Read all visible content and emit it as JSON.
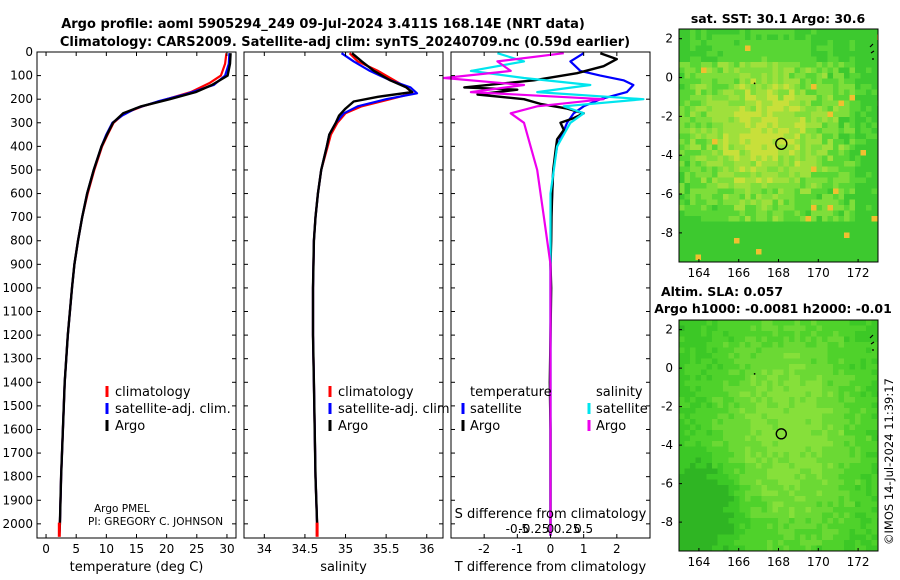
{
  "header": {
    "line1": "Argo profile: aoml 5905294_249 09-Jul-2024 3.411S 168.14E (NRT data)",
    "line2": "Climatology: CARS2009. Satellite-adj clim: synTS_20240709.nc (0.59d earlier)"
  },
  "pi": {
    "line1": "Argo PMEL",
    "line2": "PI: GREGORY C. JOHNSON"
  },
  "maps": {
    "sst_title": "sat. SST: 30.1 Argo: 30.6",
    "sla_title1": "Altim. SLA: 0.057",
    "sla_title2": "Argo h1000: -0.0081 h2000: -0.01"
  },
  "credit": "©IMOS 14-Jul-2024 11:39:17",
  "colors": {
    "argo": "#000000",
    "climatology": "#ff0000",
    "satellite_clim": "#0000ff",
    "t_satellite": "#0000ff",
    "s_satellite": "#00e5ee",
    "s_argo": "#ee00ee",
    "sst_base": "#7ee23a",
    "sla_base": "#44d622"
  },
  "chart_data": [
    {
      "type": "line",
      "id": "temperature",
      "xlabel": "temperature (deg C)",
      "ylabel": "",
      "xlim": [
        -1.5,
        31.5
      ],
      "ylim": [
        2060,
        0
      ],
      "xticks": [
        0,
        5,
        10,
        15,
        20,
        25,
        30
      ],
      "xticklabels": [
        "0",
        "5",
        "10",
        "15",
        "20",
        "25",
        "30"
      ],
      "yticks": [
        0,
        100,
        200,
        300,
        400,
        500,
        600,
        700,
        800,
        900,
        1000,
        1100,
        1200,
        1300,
        1400,
        1500,
        1600,
        1700,
        1800,
        1900,
        2000
      ],
      "yticklabels": [
        "0",
        "100",
        "200",
        "300",
        "400",
        "500",
        "600",
        "700",
        "800",
        "900",
        "1000",
        "1100",
        "1200",
        "1300",
        "1400",
        "1500",
        "1600",
        "1700",
        "1800",
        "1900",
        "2000"
      ],
      "legend": {
        "entries": [
          "climatology",
          "satellite-adj. clim.",
          "Argo"
        ],
        "placement": "lower-right"
      },
      "series": [
        {
          "name": "climatology",
          "depth": [
            5,
            50,
            100,
            130,
            170,
            200,
            230,
            260,
            300,
            350,
            400,
            500,
            600,
            700,
            800,
            900,
            1000,
            1200,
            1400,
            1600,
            1800,
            2000,
            2050
          ],
          "values": [
            29.9,
            29.7,
            29.0,
            27.2,
            24.0,
            20.0,
            16.0,
            13.0,
            11.2,
            10.2,
            9.3,
            8.0,
            6.9,
            6.0,
            5.3,
            4.7,
            4.3,
            3.6,
            3.1,
            2.8,
            2.5,
            2.3,
            2.2
          ]
        },
        {
          "name": "satellite-adj. clim.",
          "depth": [
            5,
            50,
            100,
            140,
            180,
            210,
            240,
            270,
            300,
            350,
            400,
            500,
            600,
            700,
            800,
            900,
            1000,
            1200,
            1400,
            1600,
            1800,
            2000,
            2050
          ],
          "values": [
            30.4,
            30.3,
            29.7,
            27.8,
            23.0,
            18.5,
            14.8,
            12.6,
            11.0,
            10.0,
            9.2,
            7.9,
            6.8,
            6.0,
            5.3,
            4.7,
            4.3,
            3.6,
            3.1,
            2.8,
            2.5,
            2.3,
            2.2
          ]
        },
        {
          "name": "Argo",
          "depth": [
            5,
            50,
            100,
            140,
            170,
            200,
            230,
            260,
            300,
            350,
            400,
            500,
            600,
            700,
            800,
            900,
            1000,
            1200,
            1400,
            1600,
            1800,
            2000,
            2050
          ],
          "values": [
            30.6,
            30.5,
            30.1,
            27.5,
            24.8,
            20.5,
            15.8,
            12.8,
            11.1,
            10.1,
            9.2,
            7.9,
            6.8,
            6.0,
            5.3,
            4.7,
            4.3,
            3.6,
            3.1,
            2.8,
            2.5,
            2.3,
            2.2
          ]
        }
      ]
    },
    {
      "type": "line",
      "id": "salinity",
      "xlabel": "salinity",
      "ylabel": "",
      "xlim": [
        33.75,
        36.2
      ],
      "ylim": [
        2060,
        0
      ],
      "xticks": [
        34,
        34.5,
        35,
        35.5,
        36
      ],
      "xticklabels": [
        "34",
        "34.5",
        "35",
        "35.5",
        "36"
      ],
      "legend": {
        "entries": [
          "climatology",
          "satellite-adj. clim.",
          "Argo"
        ],
        "placement": "lower-right"
      },
      "series": [
        {
          "name": "climatology",
          "depth": [
            5,
            40,
            80,
            120,
            150,
            175,
            200,
            230,
            260,
            300,
            350,
            400,
            500,
            600,
            700,
            800,
            1000,
            1200,
            1400,
            1600,
            1800,
            2000,
            2050
          ],
          "values": [
            35.05,
            35.15,
            35.4,
            35.6,
            35.75,
            35.83,
            35.55,
            35.2,
            35.0,
            34.9,
            34.82,
            34.78,
            34.7,
            34.66,
            34.63,
            34.61,
            34.6,
            34.6,
            34.61,
            34.62,
            34.63,
            34.65,
            34.65
          ]
        },
        {
          "name": "satellite-adj. clim.",
          "depth": [
            5,
            40,
            80,
            120,
            150,
            175,
            200,
            230,
            260,
            300,
            350,
            400,
            500,
            600,
            700,
            800,
            1000,
            1200,
            1400,
            1600,
            1800,
            2000,
            2050
          ],
          "values": [
            34.95,
            35.1,
            35.3,
            35.55,
            35.8,
            35.88,
            35.5,
            35.15,
            34.98,
            34.88,
            34.8,
            34.77,
            34.7,
            34.66,
            34.63,
            34.61,
            34.6,
            34.6,
            34.61,
            34.62,
            34.63,
            34.65,
            34.65
          ]
        },
        {
          "name": "Argo",
          "depth": [
            5,
            40,
            80,
            120,
            150,
            170,
            190,
            210,
            240,
            270,
            300,
            350,
            400,
            500,
            600,
            700,
            800,
            1000,
            1200,
            1400,
            1600,
            1800,
            2000,
            2050
          ],
          "values": [
            35.08,
            35.2,
            35.35,
            35.55,
            35.75,
            35.82,
            35.4,
            35.1,
            35.0,
            34.92,
            34.88,
            34.8,
            34.77,
            34.7,
            34.66,
            34.63,
            34.61,
            34.6,
            34.6,
            34.61,
            34.62,
            34.63,
            34.65,
            34.65
          ]
        }
      ]
    },
    {
      "type": "line",
      "id": "difference",
      "xlabel": "T difference from climatology",
      "xlabel_top": "S difference from climatology",
      "xlim": [
        -3,
        3
      ],
      "ylim": [
        2060,
        0
      ],
      "xticks": [
        -2,
        -1,
        0,
        1,
        2
      ],
      "xticklabels": [
        "-2",
        "-1",
        "0",
        "1",
        "2"
      ],
      "sticks": [
        -1,
        -0.5,
        0,
        0.5,
        1
      ],
      "sticklabels": [
        "-0.5",
        "-0.25",
        "0",
        "0.25",
        "0.5"
      ],
      "s_scale_note": "S difference plotted with 1 PSU = 4 plot units",
      "legend": {
        "temperature_title": "temperature",
        "salinity_title": "salinity",
        "entries_t": [
          "satellite",
          "Argo"
        ],
        "entries_s": [
          "satellite",
          "Argo"
        ],
        "placement": "lower"
      },
      "series": [
        {
          "name": "T satellite",
          "depth": [
            5,
            40,
            80,
            100,
            120,
            140,
            170,
            200,
            230,
            260,
            300,
            400,
            500,
            700,
            900,
            1200,
            1500,
            1800,
            2050
          ],
          "values": [
            1.0,
            0.6,
            0.9,
            1.5,
            2.2,
            2.5,
            2.3,
            1.5,
            1.0,
            0.7,
            0.5,
            0.2,
            0.08,
            0.02,
            0.0,
            0.0,
            0.0,
            0.0,
            0.0
          ]
        },
        {
          "name": "T Argo",
          "depth": [
            5,
            30,
            60,
            90,
            120,
            150,
            160,
            180,
            200,
            220,
            240,
            260,
            280,
            300,
            330,
            370,
            420,
            500,
            600,
            700,
            800,
            900,
            1000,
            1200,
            1400,
            1600,
            1800,
            2050
          ],
          "values": [
            1.5,
            2.0,
            1.6,
            0.8,
            -0.5,
            -2.6,
            -1.0,
            -2.2,
            -0.8,
            -0.3,
            0.5,
            1.0,
            0.7,
            0.3,
            0.4,
            0.2,
            0.15,
            0.08,
            0.05,
            0.03,
            0.02,
            0.0,
            0.02,
            0.0,
            -0.02,
            0.0,
            0.0,
            0.0
          ]
        },
        {
          "name": "S satellite",
          "depth": [
            5,
            40,
            80,
            110,
            140,
            170,
            200,
            230,
            260,
            300,
            400,
            600,
            900,
            1200,
            1600,
            2050
          ],
          "values": [
            -0.4,
            -0.2,
            -0.6,
            -0.2,
            0.3,
            -0.1,
            0.7,
            0.1,
            0.25,
            0.15,
            0.05,
            0.0,
            0.0,
            0.0,
            0.0,
            0.0
          ]
        },
        {
          "name": "S Argo",
          "depth": [
            5,
            40,
            80,
            110,
            140,
            170,
            200,
            230,
            260,
            300,
            400,
            500,
            700,
            900,
            1200,
            1600,
            2050
          ],
          "values": [
            0.1,
            -0.4,
            -0.3,
            -0.8,
            -0.2,
            -0.6,
            0.4,
            -0.1,
            -0.3,
            -0.2,
            -0.15,
            -0.1,
            -0.05,
            0.0,
            0.0,
            0.0,
            0.0
          ]
        }
      ]
    },
    {
      "type": "heatmap",
      "id": "sst_map",
      "title": "sat. SST: 30.1 Argo: 30.6",
      "xlim": [
        163,
        173
      ],
      "ylim": [
        -9.5,
        2.5
      ],
      "xticks": [
        164,
        166,
        168,
        170,
        172
      ],
      "xticklabels": [
        "164",
        "166",
        "168",
        "170",
        "172"
      ],
      "yticks": [
        2,
        0,
        -2,
        -4,
        -6,
        -8
      ],
      "yticklabels": [
        "2",
        "0",
        "-2",
        "-4",
        "-6",
        "-8"
      ],
      "float_position": {
        "lon": 168.14,
        "lat": -3.411
      }
    },
    {
      "type": "heatmap",
      "id": "sla_map",
      "title": "Altim. SLA: 0.057",
      "xlim": [
        163,
        173
      ],
      "ylim": [
        -9.5,
        2.5
      ],
      "xticks": [
        164,
        166,
        168,
        170,
        172
      ],
      "xticklabels": [
        "164",
        "166",
        "168",
        "170",
        "172"
      ],
      "yticks": [
        2,
        0,
        -2,
        -4,
        -6,
        -8
      ],
      "yticklabels": [
        "2",
        "0",
        "-2",
        "-4",
        "-6",
        "-8"
      ],
      "float_position": {
        "lon": 168.14,
        "lat": -3.411
      }
    }
  ]
}
